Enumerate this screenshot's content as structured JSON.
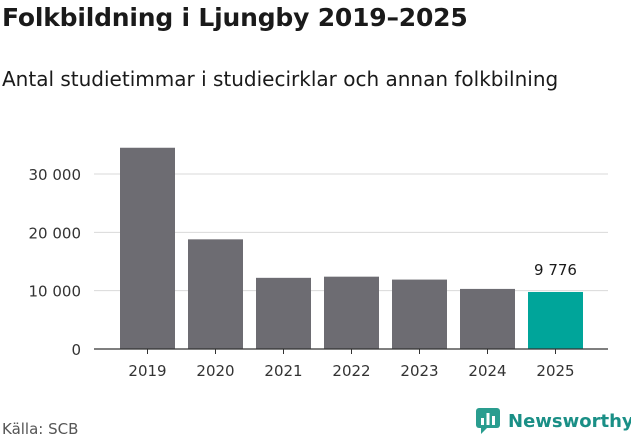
{
  "title": "Folkbildning i Ljungby 2019–2025",
  "subtitle": "Antal studietimmar i studiecirklar och annan folkbilning",
  "source": "Källa: SCB",
  "brand": {
    "name": "Newsworthy",
    "icon": "bar-chart-speech-icon",
    "color": "#2a9d8f"
  },
  "chart_data": {
    "type": "bar",
    "title": "Folkbildning i Ljungby 2019–2025",
    "subtitle": "Antal studietimmar i studiecirklar och annan folkbilning",
    "xlabel": "",
    "ylabel": "",
    "categories": [
      "2019",
      "2020",
      "2021",
      "2022",
      "2023",
      "2024",
      "2025"
    ],
    "values": [
      34500,
      18800,
      12200,
      12400,
      11900,
      10300,
      9776
    ],
    "highlight_index": 6,
    "highlight_label": "9 776",
    "ylim": [
      0,
      36000
    ],
    "yticks": [
      0,
      10000,
      20000,
      30000
    ],
    "ytick_labels": [
      "0",
      "10 000",
      "20 000",
      "30 000"
    ],
    "grid": true,
    "colors": {
      "bar": "#6d6c72",
      "highlight": "#00a59a",
      "grid": "#d9d9d9",
      "axis": "#333333"
    }
  }
}
